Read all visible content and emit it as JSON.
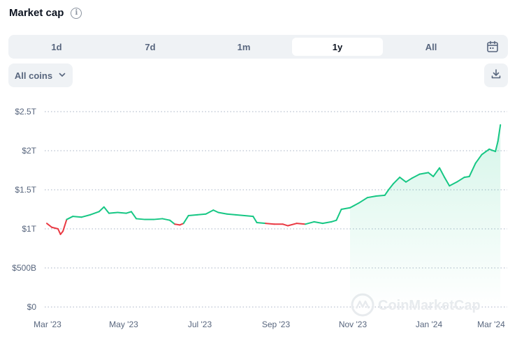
{
  "header": {
    "title": "Market cap",
    "info_icon": "info-icon"
  },
  "tabs": [
    {
      "label": "1d",
      "active": false
    },
    {
      "label": "7d",
      "active": false
    },
    {
      "label": "1m",
      "active": false
    },
    {
      "label": "1y",
      "active": true
    },
    {
      "label": "All",
      "active": false
    }
  ],
  "controls": {
    "calendar_icon": "calendar-icon",
    "coins_dropdown": "All coins",
    "download_icon": "download-icon"
  },
  "watermark": "CoinMarketCap",
  "colors": {
    "up": "#16c784",
    "down": "#ea3943",
    "grid": "#a6b0c3",
    "axis_text": "#58667e"
  },
  "chart_data": {
    "type": "line",
    "title": "Market cap",
    "x_ticks": [
      "Mar '23",
      "May '23",
      "Jul '23",
      "Sep '23",
      "Nov '23",
      "Jan '24",
      "Mar '24"
    ],
    "y_ticks": [
      "$0",
      "$500B",
      "$1T",
      "$1.5T",
      "$2T",
      "$2.5T"
    ],
    "ylim": [
      0,
      2.5
    ],
    "y_unit": "T USD",
    "grid": true,
    "series": [
      {
        "values": [
          [
            "2023-03-01",
            1.07
          ],
          [
            "2023-03-05",
            1.02
          ],
          [
            "2023-03-10",
            1.0
          ],
          [
            "2023-03-12",
            0.93
          ],
          [
            "2023-03-14",
            0.97
          ],
          [
            "2023-03-17",
            1.12
          ],
          [
            "2023-03-22",
            1.16
          ],
          [
            "2023-03-29",
            1.15
          ],
          [
            "2023-04-05",
            1.18
          ],
          [
            "2023-04-12",
            1.22
          ],
          [
            "2023-04-16",
            1.28
          ],
          [
            "2023-04-20",
            1.2
          ],
          [
            "2023-04-27",
            1.21
          ],
          [
            "2023-05-04",
            1.2
          ],
          [
            "2023-05-08",
            1.22
          ],
          [
            "2023-05-12",
            1.13
          ],
          [
            "2023-05-19",
            1.12
          ],
          [
            "2023-05-26",
            1.12
          ],
          [
            "2023-06-02",
            1.13
          ],
          [
            "2023-06-08",
            1.11
          ],
          [
            "2023-06-12",
            1.06
          ],
          [
            "2023-06-16",
            1.05
          ],
          [
            "2023-06-19",
            1.07
          ],
          [
            "2023-06-23",
            1.17
          ],
          [
            "2023-06-30",
            1.18
          ],
          [
            "2023-07-07",
            1.19
          ],
          [
            "2023-07-13",
            1.24
          ],
          [
            "2023-07-17",
            1.21
          ],
          [
            "2023-07-24",
            1.19
          ],
          [
            "2023-07-31",
            1.18
          ],
          [
            "2023-08-07",
            1.17
          ],
          [
            "2023-08-14",
            1.16
          ],
          [
            "2023-08-17",
            1.08
          ],
          [
            "2023-08-24",
            1.07
          ],
          [
            "2023-08-31",
            1.06
          ],
          [
            "2023-09-07",
            1.06
          ],
          [
            "2023-09-11",
            1.04
          ],
          [
            "2023-09-18",
            1.07
          ],
          [
            "2023-09-25",
            1.06
          ],
          [
            "2023-10-02",
            1.09
          ],
          [
            "2023-10-09",
            1.07
          ],
          [
            "2023-10-16",
            1.09
          ],
          [
            "2023-10-20",
            1.11
          ],
          [
            "2023-10-24",
            1.25
          ],
          [
            "2023-10-31",
            1.27
          ],
          [
            "2023-11-07",
            1.33
          ],
          [
            "2023-11-14",
            1.4
          ],
          [
            "2023-11-21",
            1.42
          ],
          [
            "2023-11-28",
            1.43
          ],
          [
            "2023-12-01",
            1.5
          ],
          [
            "2023-12-05",
            1.58
          ],
          [
            "2023-12-10",
            1.66
          ],
          [
            "2023-12-15",
            1.6
          ],
          [
            "2023-12-20",
            1.65
          ],
          [
            "2023-12-26",
            1.7
          ],
          [
            "2024-01-02",
            1.72
          ],
          [
            "2024-01-06",
            1.67
          ],
          [
            "2024-01-11",
            1.78
          ],
          [
            "2024-01-15",
            1.66
          ],
          [
            "2024-01-19",
            1.55
          ],
          [
            "2024-01-25",
            1.6
          ],
          [
            "2024-01-31",
            1.66
          ],
          [
            "2024-02-04",
            1.67
          ],
          [
            "2024-02-09",
            1.84
          ],
          [
            "2024-02-14",
            1.95
          ],
          [
            "2024-02-20",
            2.02
          ],
          [
            "2024-02-25",
            1.99
          ],
          [
            "2024-02-27",
            2.12
          ],
          [
            "2024-02-29",
            2.33
          ]
        ]
      }
    ]
  }
}
